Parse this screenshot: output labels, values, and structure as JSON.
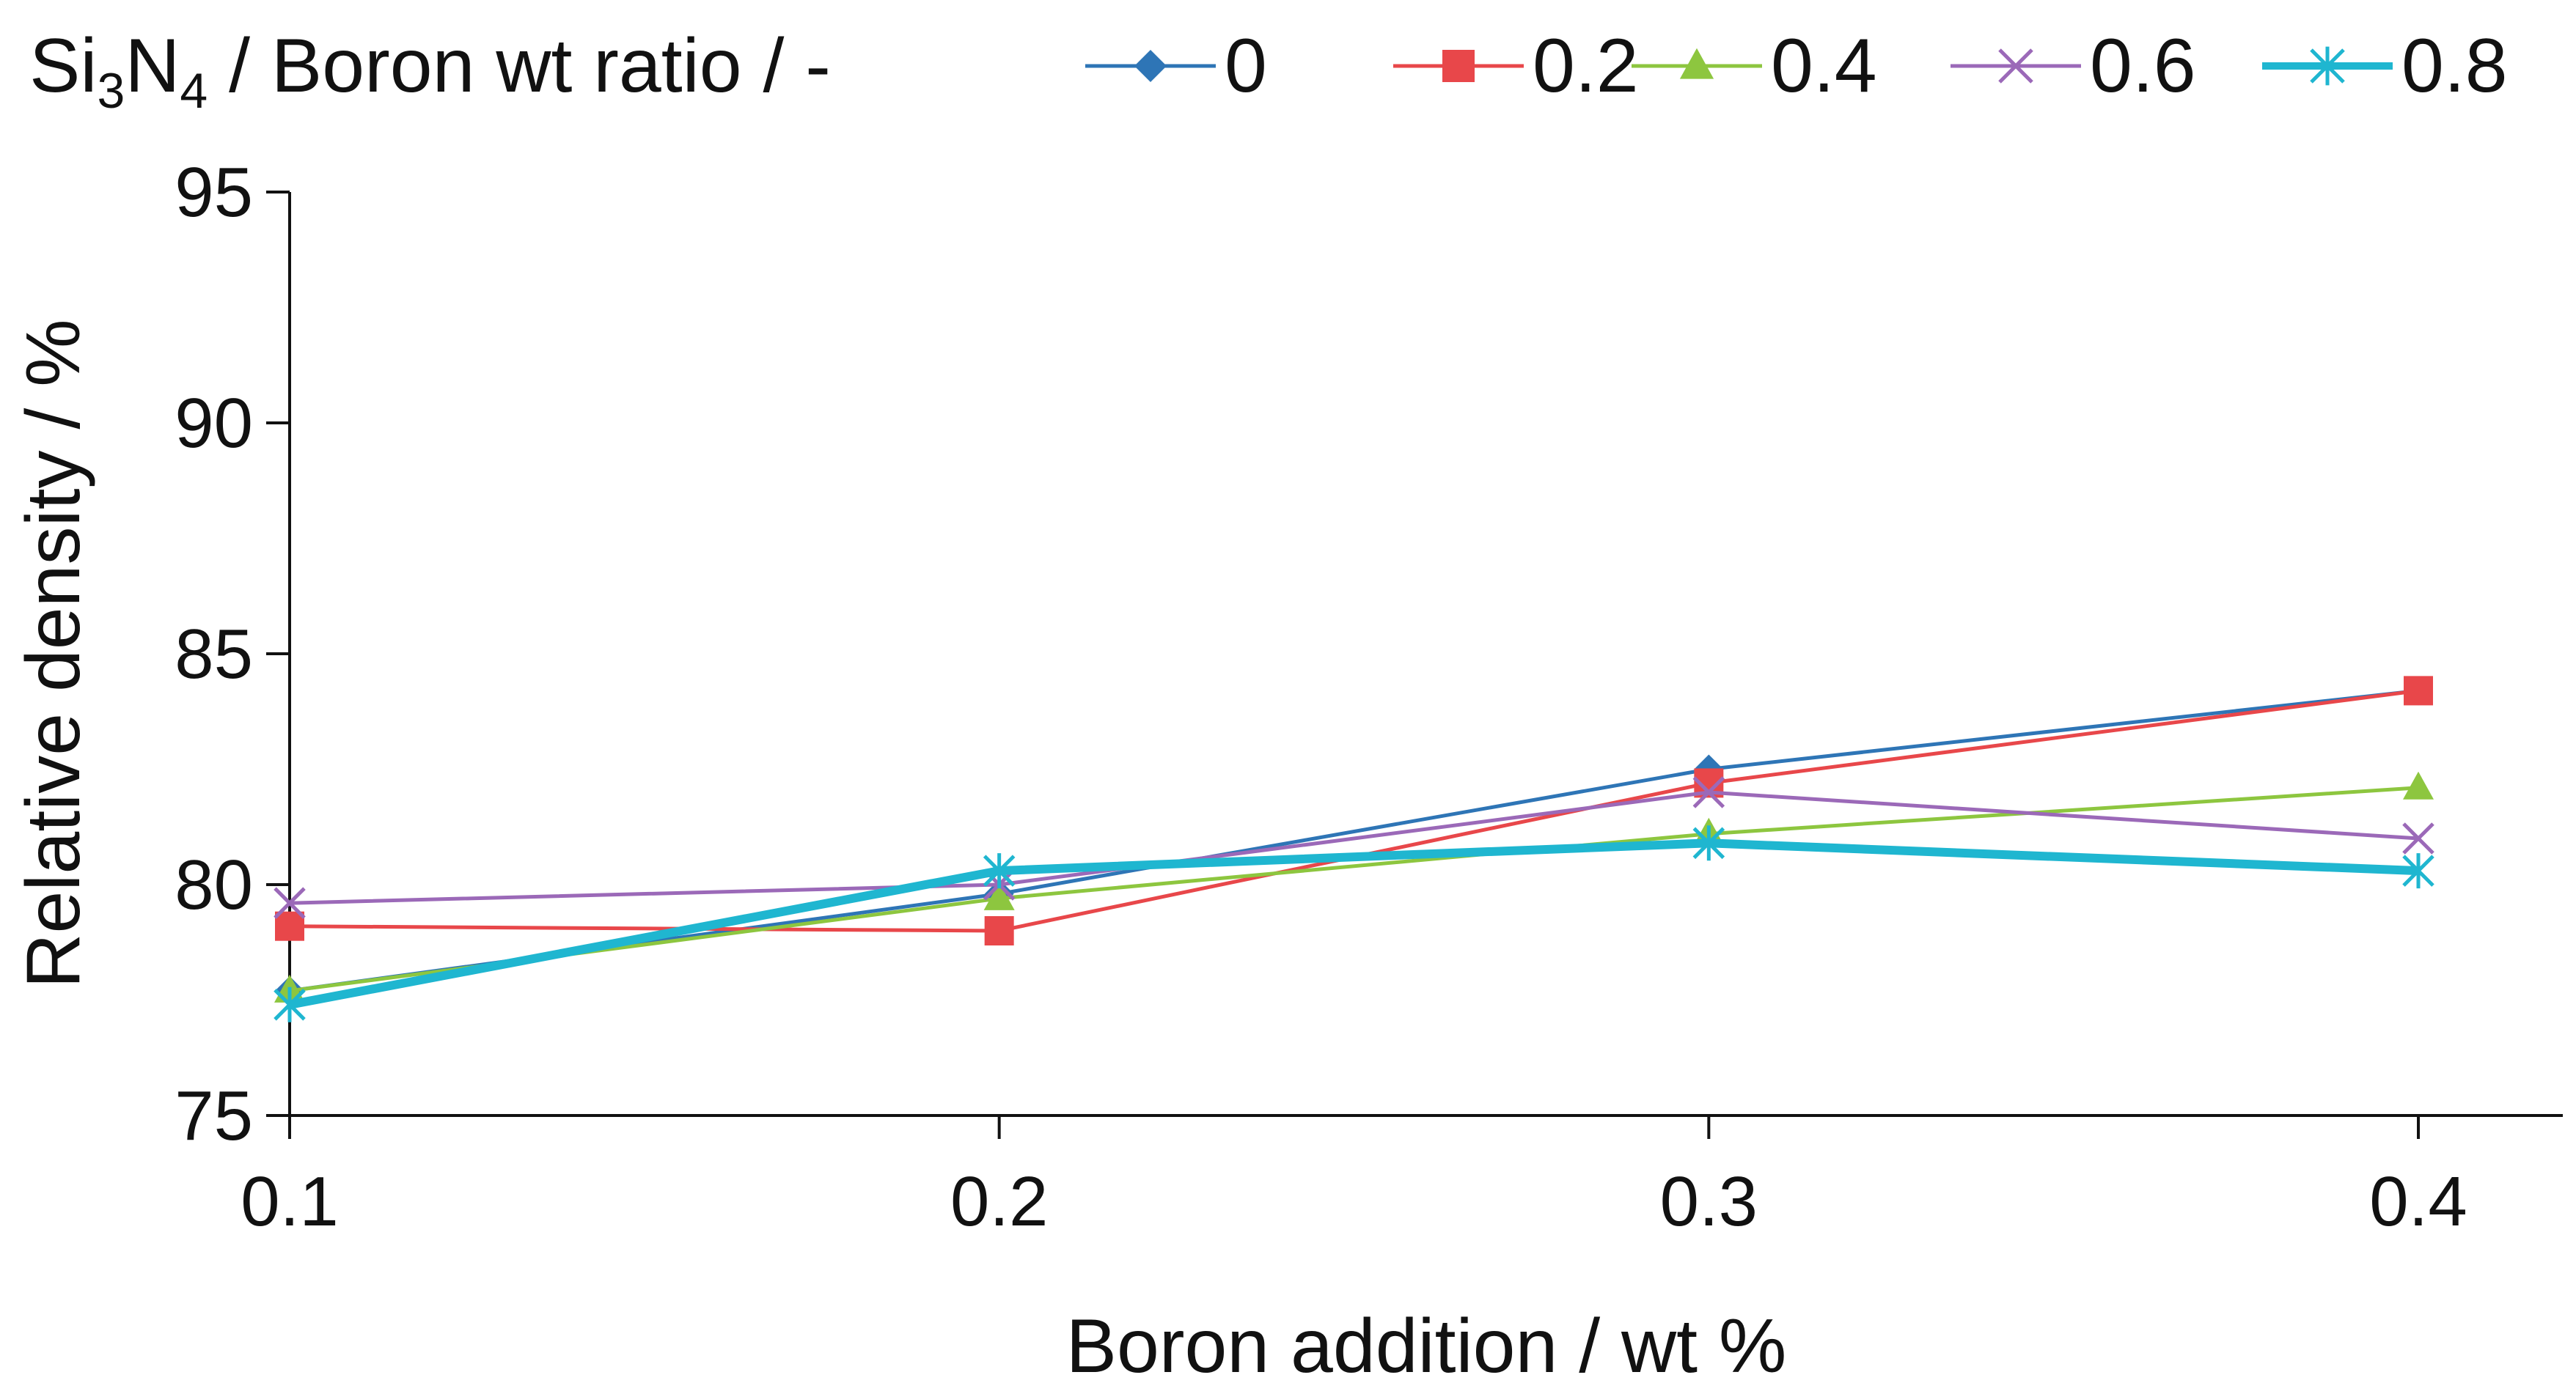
{
  "chart_data": {
    "type": "line",
    "xlabel": "Boron addition / wt %",
    "ylabel": "Relative density / %",
    "x": [
      0.1,
      0.2,
      0.3,
      0.4
    ],
    "x_tick_labels": [
      "0.1",
      "0.2",
      "0.3",
      "0.4"
    ],
    "ylim": [
      75,
      95
    ],
    "y_ticks": [
      75,
      80,
      85,
      90,
      95
    ],
    "y_tick_labels": [
      "75",
      "80",
      "85",
      "90",
      "95"
    ],
    "grid": false,
    "legend": {
      "placement": "top",
      "title_prefix": "Si",
      "title_sub1": "3",
      "title_mid": "N",
      "title_sub2": "4",
      "title_suffix": " / Boron wt ratio / -"
    },
    "series": [
      {
        "name": "0",
        "values": [
          77.7,
          79.8,
          82.5,
          84.2
        ],
        "color": "#2e75b6",
        "marker": "diamond"
      },
      {
        "name": "0.2",
        "values": [
          79.1,
          79.0,
          82.2,
          84.2
        ],
        "color": "#e8474a",
        "marker": "square"
      },
      {
        "name": "0.4",
        "values": [
          77.7,
          79.7,
          81.1,
          82.1
        ],
        "color": "#8dc63f",
        "marker": "triangle"
      },
      {
        "name": "0.6",
        "values": [
          79.6,
          80.0,
          82.0,
          81.0
        ],
        "color": "#9b69b8",
        "marker": "x"
      },
      {
        "name": "0.8",
        "values": [
          77.4,
          80.3,
          80.9,
          80.3
        ],
        "color": "#1fb6d0",
        "marker": "star"
      }
    ]
  }
}
